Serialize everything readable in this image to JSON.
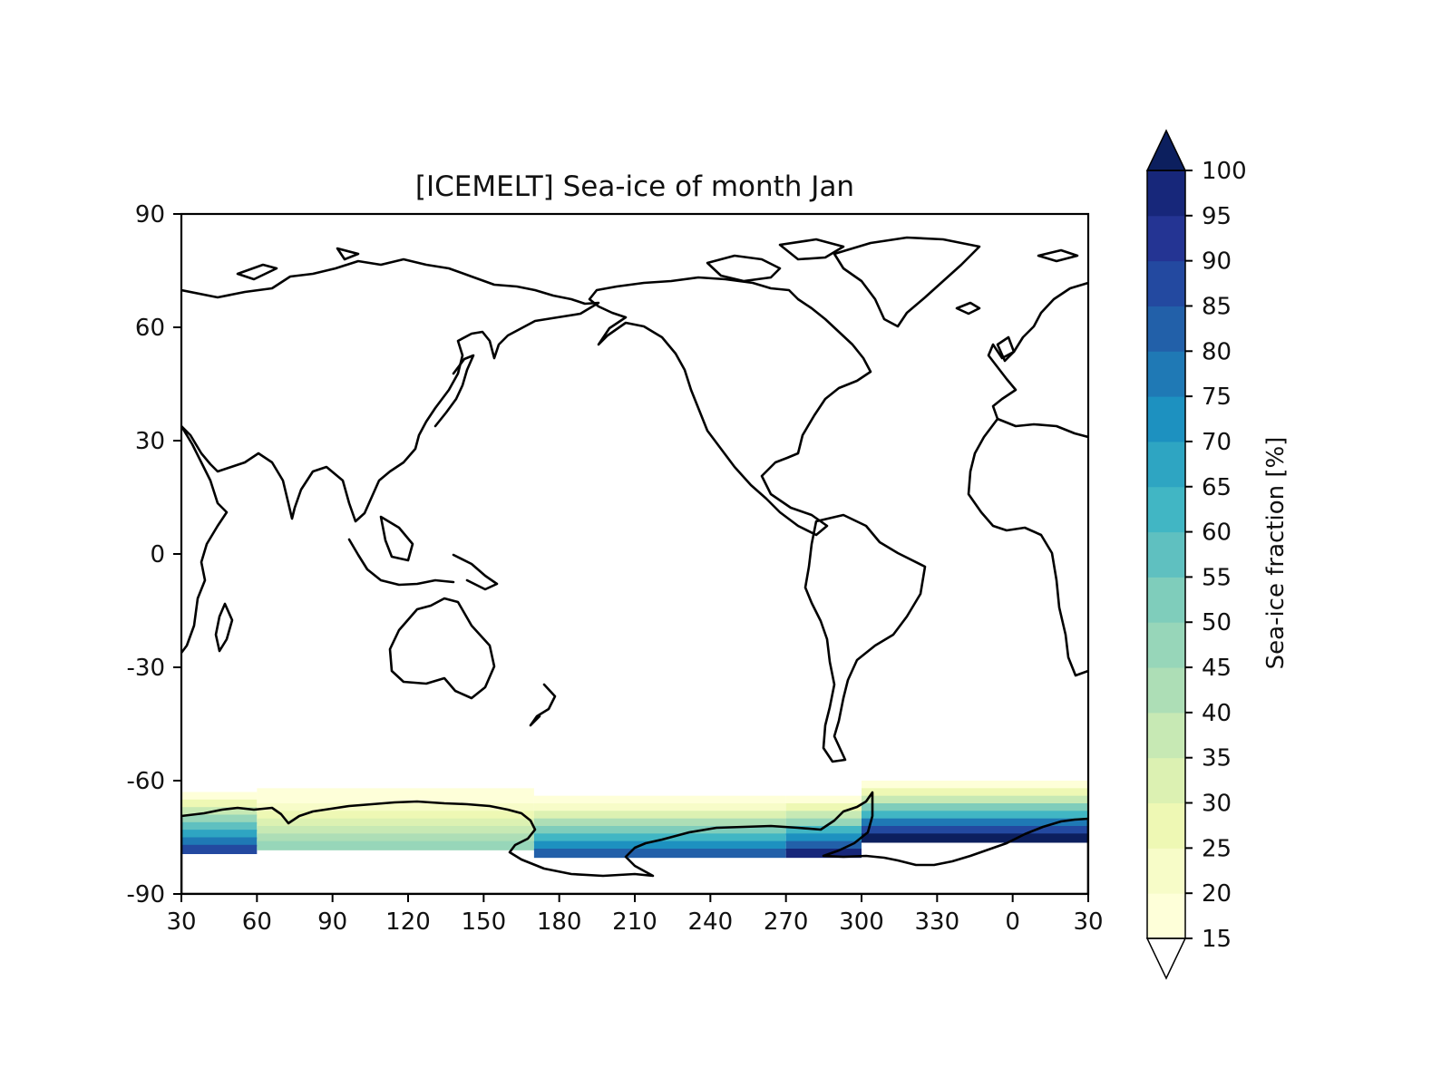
{
  "chart_data": {
    "type": "heatmap",
    "title": "[ICEMELT] Sea-ice of month Jan",
    "x_ticks": [
      "30",
      "60",
      "90",
      "120",
      "150",
      "180",
      "210",
      "240",
      "270",
      "300",
      "330",
      "0",
      "30"
    ],
    "y_ticks": [
      "90",
      "60",
      "30",
      "0",
      "-30",
      "-60",
      "-90"
    ],
    "xlim": [
      30,
      390
    ],
    "ylim": [
      -90,
      90
    ],
    "colorbar": {
      "label": "Sea-ice fraction [%]",
      "levels": [
        15,
        20,
        25,
        30,
        35,
        40,
        45,
        50,
        55,
        60,
        65,
        70,
        75,
        80,
        85,
        90,
        95,
        100
      ],
      "tick_labels": [
        "15",
        "20",
        "25",
        "30",
        "35",
        "40",
        "45",
        "50",
        "55",
        "60",
        "65",
        "70",
        "75",
        "80",
        "85",
        "90",
        "95",
        "100"
      ],
      "colors": [
        "#feffd9",
        "#f7fcc8",
        "#eef8b4",
        "#dcf1b2",
        "#c7e9b4",
        "#addeb6",
        "#97d6b9",
        "#7fcdbb",
        "#5fc0c0",
        "#41b6c4",
        "#2ea5c2",
        "#1d91c0",
        "#1f79b5",
        "#2260a9",
        "#2349a0",
        "#243493",
        "#17277a",
        "#0c1f5e"
      ],
      "extend": "both"
    },
    "sea_ice_bands": [
      {
        "lon_range": [
          30,
          60
        ],
        "lat_edge": -63,
        "max_conc": 85
      },
      {
        "lon_range": [
          60,
          170
        ],
        "lat_edge": -62,
        "max_conc": 45
      },
      {
        "lon_range": [
          170,
          270
        ],
        "lat_edge": -64,
        "max_conc": 80
      },
      {
        "lon_range": [
          270,
          300
        ],
        "lat_edge": -64,
        "max_conc": 95
      },
      {
        "lon_range": [
          300,
          390
        ],
        "lat_edge": -60,
        "max_conc": 100
      }
    ]
  }
}
